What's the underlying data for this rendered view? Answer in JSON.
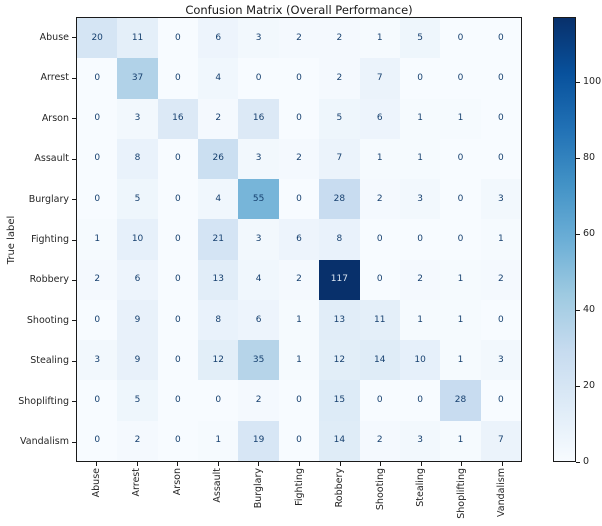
{
  "figure": {
    "background_color": "#ffffff"
  },
  "chart_data": {
    "type": "heatmap",
    "title": "Confusion Matrix (Overall Performance)",
    "xlabel": "",
    "ylabel": "True label",
    "categories": [
      "Abuse",
      "Arrest",
      "Arson",
      "Assault",
      "Burglary",
      "Fighting",
      "Robbery",
      "Shooting",
      "Stealing",
      "Shoplifting",
      "Vandalism"
    ],
    "x_tick_labels": [
      "Abuse",
      "Arrest",
      "Arson",
      "Assault",
      "Burglary",
      "Fighting",
      "Robbery",
      "Shooting",
      "Stealing",
      "Shoplifting",
      "Vandalism"
    ],
    "y_tick_labels": [
      "Abuse",
      "Arrest",
      "Arson",
      "Assault",
      "Burglary",
      "Fighting",
      "Robbery",
      "Shooting",
      "Stealing",
      "Shoplifting",
      "Vandalism"
    ],
    "matrix": [
      [
        20,
        11,
        0,
        6,
        3,
        2,
        2,
        1,
        5,
        0,
        0
      ],
      [
        0,
        37,
        0,
        4,
        0,
        0,
        2,
        7,
        0,
        0,
        0
      ],
      [
        0,
        3,
        16,
        2,
        16,
        0,
        5,
        6,
        1,
        1,
        0
      ],
      [
        0,
        8,
        0,
        26,
        3,
        2,
        7,
        1,
        1,
        0,
        0
      ],
      [
        0,
        5,
        0,
        4,
        55,
        0,
        28,
        2,
        3,
        0,
        3
      ],
      [
        1,
        10,
        0,
        21,
        3,
        6,
        8,
        0,
        0,
        0,
        1
      ],
      [
        2,
        6,
        0,
        13,
        4,
        2,
        117,
        0,
        2,
        1,
        2
      ],
      [
        0,
        9,
        0,
        8,
        6,
        1,
        13,
        11,
        1,
        1,
        0
      ],
      [
        3,
        9,
        0,
        12,
        35,
        1,
        12,
        14,
        10,
        1,
        3
      ],
      [
        0,
        5,
        0,
        0,
        2,
        0,
        15,
        0,
        0,
        28,
        0
      ],
      [
        0,
        2,
        0,
        1,
        19,
        0,
        14,
        2,
        3,
        1,
        7
      ]
    ],
    "vmin": 0,
    "vmax": 117,
    "colormap": "Blues",
    "colorbar_ticks": [
      0,
      20,
      40,
      60,
      80,
      100
    ],
    "colorbar_position": "right",
    "grid": false,
    "annotated": true
  },
  "colors": {
    "cmap_low": "#f7fbff",
    "cmap_high": "#08306b",
    "cell_text_dark": "#16406f",
    "cell_text_light": "#dce6f2",
    "axis_text": "#262626",
    "spine": "#1a1a1a"
  }
}
